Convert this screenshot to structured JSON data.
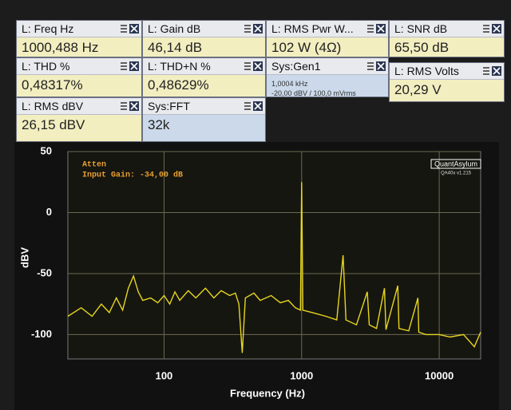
{
  "widgets": [
    {
      "title": "L: Freq Hz",
      "value": "1000,488 Hz"
    },
    {
      "title": "L: Gain dB",
      "value": "46,14 dB"
    },
    {
      "title": "L: RMS Pwr W...",
      "value": "102 W (4Ω)"
    },
    {
      "title": "L: SNR dB",
      "value": "65,50 dB"
    },
    {
      "title": "L: THD %",
      "value": "0,48317%"
    },
    {
      "title": "L: THD+N %",
      "value": "0,48629%"
    },
    {
      "title": "Sys:Gen1",
      "lines": [
        "1,0004 kHz",
        "-20,00 dBV / 100,0 mVrms"
      ]
    },
    {
      "title": "L: RMS Volts",
      "value": "20,29 V"
    },
    {
      "title": "L: RMS dBV",
      "value": "26,15 dBV"
    },
    {
      "title": "Sys:FFT",
      "value": "32k"
    }
  ],
  "chart_data": {
    "type": "line",
    "x_label": "Frequency (Hz)",
    "y_label": "dBV",
    "annotations": [
      "Atten",
      "Input Gain: -34,00 dB"
    ],
    "logo": "QuantAsylum",
    "version": "QA40x v1.215",
    "x": [
      20,
      25,
      30,
      35,
      40,
      45,
      50,
      55,
      60,
      65,
      70,
      80,
      90,
      100,
      110,
      120,
      130,
      150,
      170,
      200,
      230,
      260,
      300,
      330,
      350,
      370,
      390,
      450,
      500,
      600,
      700,
      800,
      900,
      980,
      1000,
      1020,
      1200,
      1500,
      1800,
      2000,
      2100,
      2500,
      3000,
      3100,
      3500,
      4000,
      4100,
      5000,
      5100,
      6000,
      7000,
      7100,
      8000,
      10000,
      12000,
      15000,
      18000,
      20000
    ],
    "series": [
      {
        "name": "L",
        "color": "#e6d61e",
        "values": [
          -85,
          -78,
          -85,
          -75,
          -82,
          -70,
          -80,
          -62,
          -52,
          -65,
          -72,
          -70,
          -74,
          -68,
          -75,
          -65,
          -72,
          -64,
          -70,
          -62,
          -70,
          -64,
          -68,
          -66,
          -75,
          -115,
          -70,
          -66,
          -72,
          -68,
          -74,
          -72,
          -78,
          -80,
          25,
          -80,
          -82,
          -85,
          -88,
          -35,
          -88,
          -92,
          -65,
          -92,
          -95,
          -62,
          -96,
          -60,
          -95,
          -97,
          -70,
          -98,
          -100,
          -100,
          -102,
          -100,
          -110,
          -98
        ]
      }
    ],
    "xlim": [
      20,
      20000
    ],
    "ylim": [
      -120,
      50
    ],
    "xticks": [
      100,
      1000,
      10000
    ],
    "yticks": [
      -100,
      -50,
      0,
      50
    ],
    "log_x": true,
    "grid": true
  }
}
